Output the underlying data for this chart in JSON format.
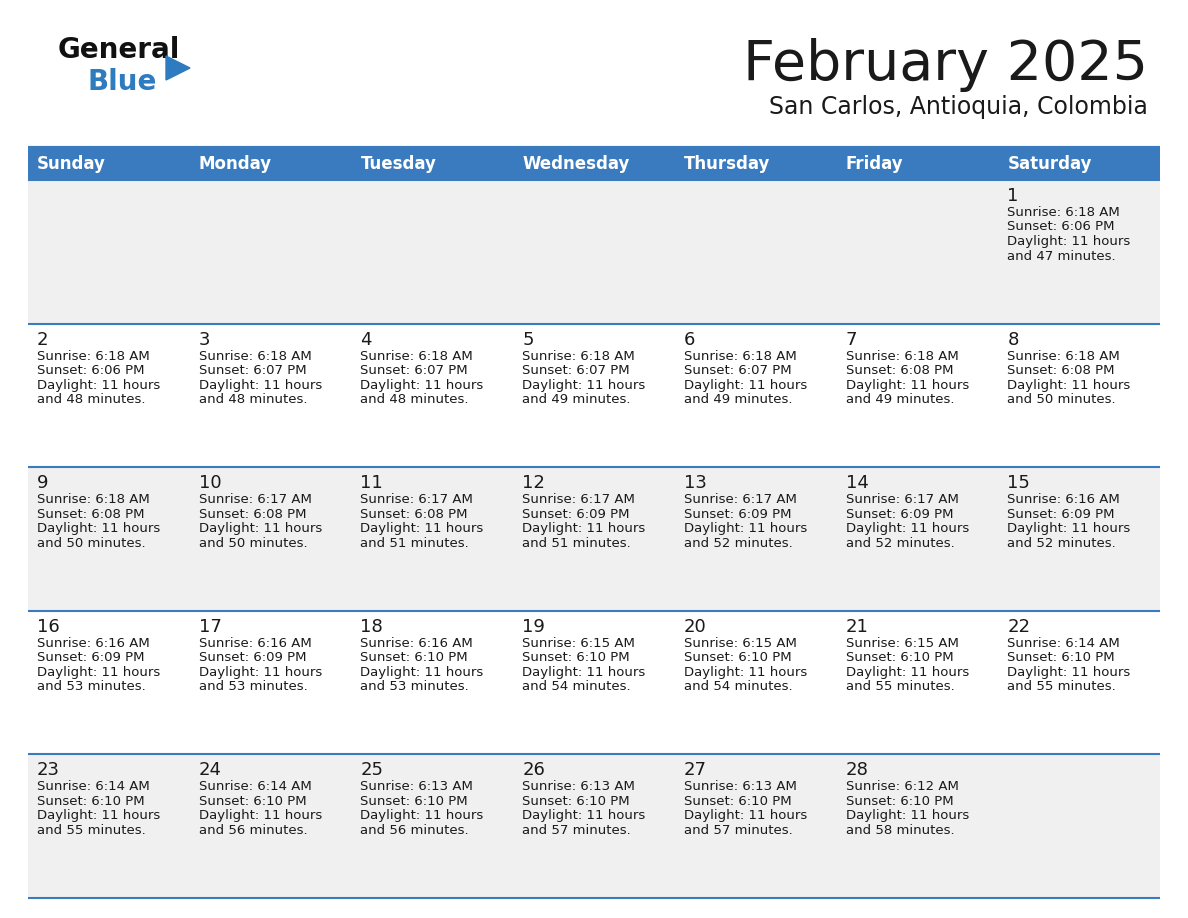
{
  "title": "February 2025",
  "subtitle": "San Carlos, Antioquia, Colombia",
  "header_bg": "#3a7bbf",
  "header_text": "#ffffff",
  "cell_bg_light": "#f0f0f0",
  "cell_bg_white": "#ffffff",
  "separator_color": "#3a7bbf",
  "text_color": "#1a1a1a",
  "day_headers": [
    "Sunday",
    "Monday",
    "Tuesday",
    "Wednesday",
    "Thursday",
    "Friday",
    "Saturday"
  ],
  "calendar_data": [
    [
      null,
      null,
      null,
      null,
      null,
      null,
      {
        "day": 1,
        "sunrise": "6:18 AM",
        "sunset": "6:06 PM",
        "daylight": "11 hours and 47 minutes."
      }
    ],
    [
      {
        "day": 2,
        "sunrise": "6:18 AM",
        "sunset": "6:06 PM",
        "daylight": "11 hours and 48 minutes."
      },
      {
        "day": 3,
        "sunrise": "6:18 AM",
        "sunset": "6:07 PM",
        "daylight": "11 hours and 48 minutes."
      },
      {
        "day": 4,
        "sunrise": "6:18 AM",
        "sunset": "6:07 PM",
        "daylight": "11 hours and 48 minutes."
      },
      {
        "day": 5,
        "sunrise": "6:18 AM",
        "sunset": "6:07 PM",
        "daylight": "11 hours and 49 minutes."
      },
      {
        "day": 6,
        "sunrise": "6:18 AM",
        "sunset": "6:07 PM",
        "daylight": "11 hours and 49 minutes."
      },
      {
        "day": 7,
        "sunrise": "6:18 AM",
        "sunset": "6:08 PM",
        "daylight": "11 hours and 49 minutes."
      },
      {
        "day": 8,
        "sunrise": "6:18 AM",
        "sunset": "6:08 PM",
        "daylight": "11 hours and 50 minutes."
      }
    ],
    [
      {
        "day": 9,
        "sunrise": "6:18 AM",
        "sunset": "6:08 PM",
        "daylight": "11 hours and 50 minutes."
      },
      {
        "day": 10,
        "sunrise": "6:17 AM",
        "sunset": "6:08 PM",
        "daylight": "11 hours and 50 minutes."
      },
      {
        "day": 11,
        "sunrise": "6:17 AM",
        "sunset": "6:08 PM",
        "daylight": "11 hours and 51 minutes."
      },
      {
        "day": 12,
        "sunrise": "6:17 AM",
        "sunset": "6:09 PM",
        "daylight": "11 hours and 51 minutes."
      },
      {
        "day": 13,
        "sunrise": "6:17 AM",
        "sunset": "6:09 PM",
        "daylight": "11 hours and 52 minutes."
      },
      {
        "day": 14,
        "sunrise": "6:17 AM",
        "sunset": "6:09 PM",
        "daylight": "11 hours and 52 minutes."
      },
      {
        "day": 15,
        "sunrise": "6:16 AM",
        "sunset": "6:09 PM",
        "daylight": "11 hours and 52 minutes."
      }
    ],
    [
      {
        "day": 16,
        "sunrise": "6:16 AM",
        "sunset": "6:09 PM",
        "daylight": "11 hours and 53 minutes."
      },
      {
        "day": 17,
        "sunrise": "6:16 AM",
        "sunset": "6:09 PM",
        "daylight": "11 hours and 53 minutes."
      },
      {
        "day": 18,
        "sunrise": "6:16 AM",
        "sunset": "6:10 PM",
        "daylight": "11 hours and 53 minutes."
      },
      {
        "day": 19,
        "sunrise": "6:15 AM",
        "sunset": "6:10 PM",
        "daylight": "11 hours and 54 minutes."
      },
      {
        "day": 20,
        "sunrise": "6:15 AM",
        "sunset": "6:10 PM",
        "daylight": "11 hours and 54 minutes."
      },
      {
        "day": 21,
        "sunrise": "6:15 AM",
        "sunset": "6:10 PM",
        "daylight": "11 hours and 55 minutes."
      },
      {
        "day": 22,
        "sunrise": "6:14 AM",
        "sunset": "6:10 PM",
        "daylight": "11 hours and 55 minutes."
      }
    ],
    [
      {
        "day": 23,
        "sunrise": "6:14 AM",
        "sunset": "6:10 PM",
        "daylight": "11 hours and 55 minutes."
      },
      {
        "day": 24,
        "sunrise": "6:14 AM",
        "sunset": "6:10 PM",
        "daylight": "11 hours and 56 minutes."
      },
      {
        "day": 25,
        "sunrise": "6:13 AM",
        "sunset": "6:10 PM",
        "daylight": "11 hours and 56 minutes."
      },
      {
        "day": 26,
        "sunrise": "6:13 AM",
        "sunset": "6:10 PM",
        "daylight": "11 hours and 57 minutes."
      },
      {
        "day": 27,
        "sunrise": "6:13 AM",
        "sunset": "6:10 PM",
        "daylight": "11 hours and 57 minutes."
      },
      {
        "day": 28,
        "sunrise": "6:12 AM",
        "sunset": "6:10 PM",
        "daylight": "11 hours and 58 minutes."
      },
      null
    ]
  ],
  "logo_general_color": "#111111",
  "logo_blue_color": "#2e7bbf",
  "logo_triangle_color": "#2e7bbf",
  "title_fontsize": 40,
  "subtitle_fontsize": 17,
  "header_fontsize": 12,
  "day_num_fontsize": 13,
  "cell_fontsize": 9.5
}
